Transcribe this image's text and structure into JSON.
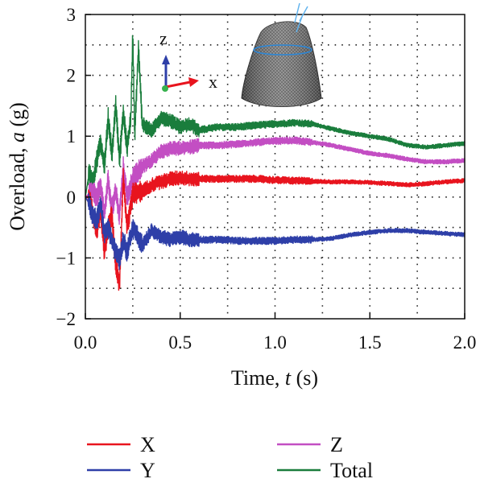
{
  "chart_data": {
    "type": "line",
    "xlabel": "Time, t (s)",
    "xlabel_parts": [
      "Time, ",
      "t",
      " (s)"
    ],
    "ylabel": "Overload, a (g)",
    "ylabel_parts": [
      "Overload, ",
      "a",
      " (g)"
    ],
    "xlim": [
      0,
      2.0
    ],
    "ylim": [
      -2,
      3
    ],
    "xticks": [
      0,
      0.5,
      1.0,
      1.5,
      2.0
    ],
    "xtick_labels": [
      "0.0",
      "0.5",
      "1.0",
      "1.5",
      "2.0"
    ],
    "yticks": [
      -2,
      -1,
      0,
      1,
      2,
      3
    ],
    "ytick_labels": [
      "−2",
      "−1",
      "0",
      "1",
      "2",
      "3"
    ],
    "grid": true,
    "legend_position": "bottom",
    "series": [
      {
        "name": "X",
        "color": "#e8141e",
        "x": [
          0,
          0.02,
          0.04,
          0.06,
          0.08,
          0.1,
          0.12,
          0.14,
          0.16,
          0.18,
          0.2,
          0.22,
          0.25,
          0.3,
          0.35,
          0.4,
          0.45,
          0.5,
          0.55,
          0.6,
          0.7,
          0.8,
          0.9,
          1.0,
          1.1,
          1.2,
          1.3,
          1.4,
          1.5,
          1.6,
          1.7,
          1.8,
          1.9,
          2.0
        ],
        "y": [
          0,
          0.0,
          -0.3,
          -0.6,
          -0.2,
          -0.9,
          -0.5,
          -0.3,
          -1.1,
          -1.45,
          0.3,
          -0.5,
          0.05,
          0.1,
          0.2,
          0.25,
          0.3,
          0.32,
          0.3,
          0.3,
          0.3,
          0.3,
          0.3,
          0.28,
          0.27,
          0.26,
          0.25,
          0.25,
          0.24,
          0.22,
          0.2,
          0.22,
          0.25,
          0.27
        ]
      },
      {
        "name": "Y",
        "color": "#2e3fa8",
        "x": [
          0,
          0.02,
          0.04,
          0.06,
          0.08,
          0.1,
          0.12,
          0.14,
          0.16,
          0.18,
          0.2,
          0.22,
          0.25,
          0.3,
          0.35,
          0.4,
          0.45,
          0.5,
          0.55,
          0.6,
          0.7,
          0.8,
          0.9,
          1.0,
          1.1,
          1.2,
          1.3,
          1.4,
          1.5,
          1.6,
          1.7,
          1.8,
          1.9,
          2.0
        ],
        "y": [
          0,
          -0.1,
          -0.3,
          -0.4,
          -0.1,
          -0.6,
          -0.5,
          -0.7,
          -0.9,
          -1.05,
          -0.7,
          -0.9,
          -0.5,
          -0.8,
          -0.55,
          -0.65,
          -0.7,
          -0.65,
          -0.7,
          -0.7,
          -0.7,
          -0.72,
          -0.72,
          -0.72,
          -0.7,
          -0.7,
          -0.68,
          -0.62,
          -0.58,
          -0.55,
          -0.55,
          -0.58,
          -0.6,
          -0.62
        ]
      },
      {
        "name": "Z",
        "color": "#c34ec3",
        "x": [
          0,
          0.02,
          0.04,
          0.06,
          0.08,
          0.1,
          0.12,
          0.14,
          0.16,
          0.18,
          0.2,
          0.22,
          0.25,
          0.3,
          0.35,
          0.4,
          0.45,
          0.5,
          0.55,
          0.6,
          0.7,
          0.8,
          0.9,
          1.0,
          1.1,
          1.2,
          1.3,
          1.4,
          1.5,
          1.6,
          1.7,
          1.8,
          1.9,
          2.0
        ],
        "y": [
          0,
          0.05,
          0.1,
          0.0,
          0.2,
          -0.3,
          0.3,
          -0.2,
          0.1,
          -0.3,
          0.5,
          0.0,
          0.3,
          0.5,
          0.6,
          0.75,
          0.8,
          0.8,
          0.82,
          0.85,
          0.85,
          0.87,
          0.9,
          0.92,
          0.93,
          0.9,
          0.85,
          0.78,
          0.72,
          0.68,
          0.62,
          0.58,
          0.58,
          0.6
        ]
      },
      {
        "name": "Total",
        "color": "#1a7d3c",
        "x": [
          0,
          0.02,
          0.04,
          0.06,
          0.08,
          0.1,
          0.12,
          0.14,
          0.16,
          0.18,
          0.2,
          0.22,
          0.24,
          0.25,
          0.26,
          0.28,
          0.3,
          0.35,
          0.4,
          0.45,
          0.5,
          0.55,
          0.6,
          0.7,
          0.8,
          0.9,
          1.0,
          1.1,
          1.2,
          1.3,
          1.4,
          1.5,
          1.6,
          1.7,
          1.8,
          1.9,
          2.0
        ],
        "y": [
          0,
          0.4,
          0.2,
          0.6,
          0.9,
          0.5,
          1.3,
          0.7,
          1.55,
          0.6,
          1.4,
          0.8,
          1.3,
          2.75,
          1.0,
          2.45,
          1.2,
          1.1,
          1.3,
          1.25,
          1.15,
          1.2,
          1.1,
          1.15,
          1.15,
          1.18,
          1.2,
          1.22,
          1.2,
          1.12,
          1.05,
          1.0,
          0.95,
          0.85,
          0.82,
          0.85,
          0.88
        ]
      }
    ],
    "inset": {
      "axis_labels": [
        "z",
        "x"
      ]
    }
  }
}
